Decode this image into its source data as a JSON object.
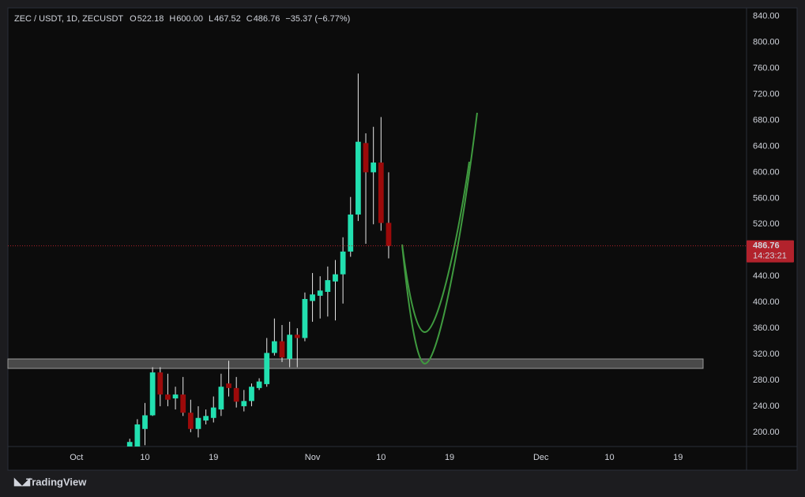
{
  "chart_data": {
    "type": "candlestick",
    "legend": {
      "symbol": "ZEC / USDT, 1D, ZECUSDT",
      "items": [
        {
          "key": "O",
          "text": "522.18"
        },
        {
          "key": "H",
          "text": "600.00"
        },
        {
          "key": "L",
          "text": "467.52"
        },
        {
          "key": "C",
          "text": "486.76"
        }
      ],
      "change": "−35.37 (−6.77%)"
    },
    "x": [
      "Oct 8",
      "Oct 9",
      "Oct 10",
      "Oct 11",
      "Oct 12",
      "Oct 13",
      "Oct 14",
      "Oct 15",
      "Oct 16",
      "Oct 17",
      "Oct 18",
      "Oct 19",
      "Oct 20",
      "Oct 21",
      "Oct 22",
      "Oct 23",
      "Oct 24",
      "Oct 25",
      "Oct 26",
      "Oct 27",
      "Oct 28",
      "Oct 29",
      "Oct 30",
      "Oct 31",
      "Nov 1",
      "Nov 2",
      "Nov 3",
      "Nov 4",
      "Nov 5",
      "Nov 6",
      "Nov 7",
      "Nov 8",
      "Nov 9",
      "Nov 10",
      "Nov 11"
    ],
    "open": [
      175,
      178,
      205,
      226,
      292,
      258,
      252,
      258,
      230,
      205,
      218,
      222,
      235,
      275,
      268,
      240,
      248,
      268,
      274,
      322,
      340,
      313,
      350,
      345,
      402,
      410,
      416,
      432,
      443,
      478,
      535,
      645,
      600,
      615,
      522.18
    ],
    "high": [
      190,
      220,
      245,
      300,
      300,
      290,
      270,
      285,
      250,
      240,
      235,
      255,
      290,
      310,
      285,
      265,
      275,
      283,
      345,
      375,
      365,
      370,
      360,
      415,
      445,
      440,
      455,
      465,
      500,
      562,
      752,
      660,
      670,
      685,
      600
    ],
    "low": [
      170,
      170,
      180,
      225,
      240,
      240,
      235,
      225,
      200,
      192,
      212,
      215,
      225,
      255,
      238,
      232,
      240,
      265,
      270,
      318,
      308,
      300,
      300,
      340,
      370,
      375,
      378,
      372,
      398,
      470,
      525,
      490,
      520,
      510,
      467.52
    ],
    "close": [
      185,
      212,
      226,
      292,
      258,
      250,
      258,
      230,
      205,
      222,
      225,
      238,
      270,
      268,
      247,
      248,
      270,
      278,
      322,
      340,
      315,
      350,
      345,
      405,
      412,
      418,
      434,
      443,
      478,
      535,
      647,
      600,
      615,
      522,
      486.76
    ],
    "up_color": "#22e0b0",
    "down_color": "#9c0a0a",
    "wick_color": "#e8e8e8",
    "xlim": [
      "Sep 22",
      "Dec 28"
    ],
    "xticks": [
      {
        "value": "Oct 1",
        "label": "Oct"
      },
      {
        "value": "Oct 10",
        "label": "10"
      },
      {
        "value": "Oct 19",
        "label": "19"
      },
      {
        "value": "Nov 1",
        "label": "Nov"
      },
      {
        "value": "Nov 10",
        "label": "10"
      },
      {
        "value": "Nov 19",
        "label": "19"
      },
      {
        "value": "Dec 1",
        "label": "Dec"
      },
      {
        "value": "Dec 10",
        "label": "10"
      },
      {
        "value": "Dec 19",
        "label": "19"
      }
    ],
    "ylim": [
      178,
      853
    ],
    "yticks": [
      {
        "value": 200,
        "label": "200.00"
      },
      {
        "value": 240,
        "label": "240.00"
      },
      {
        "value": 280,
        "label": "280.00"
      },
      {
        "value": 320,
        "label": "320.00"
      },
      {
        "value": 360,
        "label": "360.00"
      },
      {
        "value": 400,
        "label": "400.00"
      },
      {
        "value": 440,
        "label": "440.00"
      },
      {
        "value": 480,
        "label": "480.00"
      },
      {
        "value": 520,
        "label": "520.00"
      },
      {
        "value": 560,
        "label": "560.00"
      },
      {
        "value": 600,
        "label": "600.00"
      },
      {
        "value": 640,
        "label": "640.00"
      },
      {
        "value": 680,
        "label": "680.00"
      },
      {
        "value": 720,
        "label": "720.00"
      },
      {
        "value": 760,
        "label": "760.00"
      },
      {
        "value": 800,
        "label": "800.00"
      },
      {
        "value": 840,
        "label": "840.00"
      }
    ],
    "last_price": {
      "label": "486.76",
      "countdown": "14:23:21",
      "color": "#b2222c"
    },
    "brand": "TradingView"
  }
}
